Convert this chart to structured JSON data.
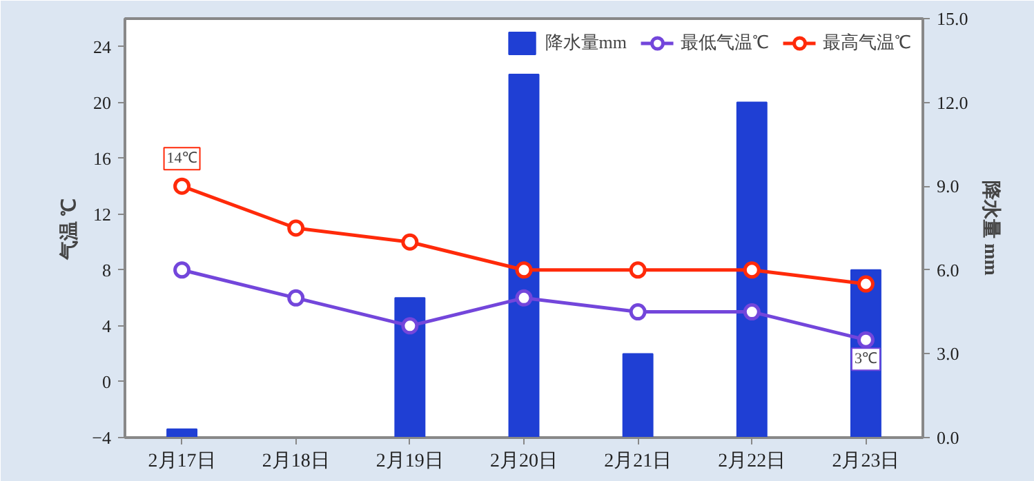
{
  "chart_data": {
    "type": "bar",
    "categories": [
      "2月17日",
      "2月18日",
      "2月19日",
      "2月20日",
      "2月21日",
      "2月22日",
      "2月23日"
    ],
    "series": [
      {
        "name": "降水量mm",
        "axis": "y2",
        "color": "#1f3fd4",
        "values": [
          0.3,
          0,
          5.0,
          13.0,
          3.0,
          12.0,
          6.0
        ]
      },
      {
        "name": "最低气温℃",
        "type": "line",
        "color": "#7346db",
        "values": [
          8,
          6,
          4,
          6,
          5,
          5,
          3
        ]
      },
      {
        "name": "最高气温℃",
        "type": "line",
        "color": "#ff2a0a",
        "values": [
          14,
          11,
          10,
          8,
          8,
          8,
          7
        ]
      }
    ],
    "ylabel": "气温 ℃",
    "y2label": "降水量 mm",
    "ylim": [
      -4,
      26
    ],
    "yticks": [
      -4,
      0,
      4,
      8,
      12,
      16,
      20,
      24
    ],
    "y2lim": [
      0,
      15
    ],
    "y2ticks": [
      {
        "value": 0,
        "label": "0.0"
      },
      {
        "value": 3,
        "label": "3.0"
      },
      {
        "value": 6,
        "label": "6.0"
      },
      {
        "value": 9,
        "label": "9.0"
      },
      {
        "value": 12,
        "label": "12.0"
      },
      {
        "value": 15,
        "label": "15.0"
      }
    ],
    "annotations": [
      {
        "text": "14℃",
        "x": "2月17日",
        "y": 14
      },
      {
        "text": "3℃",
        "x": "2月23日",
        "y": 3
      }
    ],
    "legend": "top right",
    "marker": "circle",
    "line_style": "solid",
    "grid": false
  }
}
